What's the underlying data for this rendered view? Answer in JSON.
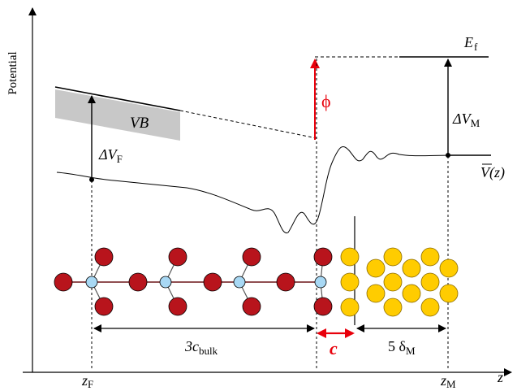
{
  "labels": {
    "y_axis": "Potential",
    "x_axis": "z",
    "valence_band": "VB",
    "delta_v_f": {
      "main": "ΔV",
      "sub": "F"
    },
    "delta_v_m": {
      "main": "ΔV",
      "sub": "M"
    },
    "fermi_level": {
      "main": "E",
      "sub": "f"
    },
    "work_function": "ϕ",
    "avg_potential": "V(z)",
    "z_f": {
      "main": "z",
      "sub": "F"
    },
    "z_m": {
      "main": "z",
      "sub": "M"
    },
    "three_c_bulk": {
      "main": "3c",
      "sub": "bulk"
    },
    "c_label": "c",
    "five_delta_m": {
      "main": "5 δ",
      "sub": "M"
    }
  },
  "colors": {
    "oxide_atom": "#b8141c",
    "bridge_atom": "#a8d8f4",
    "metal_atom": "#ffcc00",
    "highlight": "#e8000b",
    "band_fill": "#c8c8c8"
  }
}
